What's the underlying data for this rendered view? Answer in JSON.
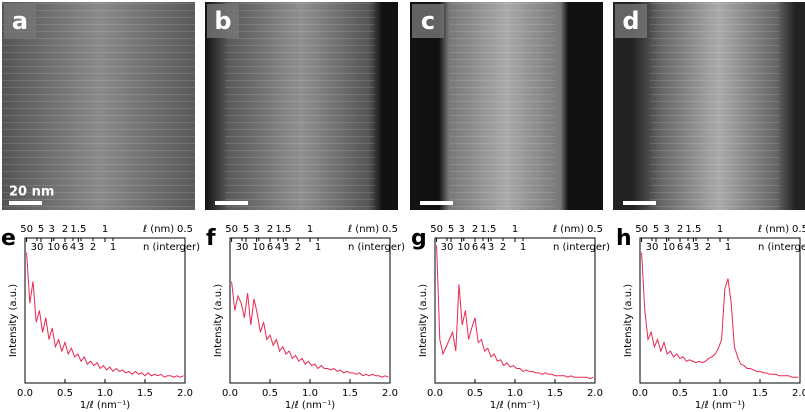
{
  "images": {
    "panels": [
      "a",
      "b",
      "c",
      "d"
    ],
    "scale_bar": "20 nm"
  },
  "chart_data": [
    {
      "type": "line",
      "panel": "e",
      "ylabel": "Intensity (a.u.)",
      "xlabel": "1/ℓ (nm⁻¹)",
      "x2label": "ℓ (nm)",
      "x3label": "n (interger)",
      "color": "#e8294f",
      "xlim": [
        0,
        2
      ],
      "ylim": [
        0,
        1
      ],
      "xticks": [
        {
          "value": 0,
          "label": "0.0"
        },
        0.5,
        {
          "value": 1,
          "label": "1.0"
        },
        1.5,
        {
          "value": 2,
          "label": "2.0"
        }
      ],
      "x2ticks": [
        {
          "value": 0.02,
          "label": "50"
        },
        {
          "value": 0.2,
          "label": "5"
        },
        {
          "value": 0.333,
          "label": "3"
        },
        {
          "value": 0.5,
          "label": "2"
        },
        {
          "value": 0.667,
          "label": "1.5"
        },
        {
          "value": 1,
          "label": "1"
        },
        {
          "value": 2,
          "label": "0.5"
        }
      ],
      "x3ticks": [
        {
          "value": 0.15,
          "label": "30"
        },
        {
          "value": 0.36,
          "label": "10"
        },
        {
          "value": 0.5,
          "label": "6"
        },
        {
          "value": 0.6,
          "label": "4"
        },
        {
          "value": 0.7,
          "label": "3"
        },
        {
          "value": 0.85,
          "label": "2"
        },
        {
          "value": 1.1,
          "label": "1"
        }
      ],
      "x": [
        0.02,
        0.06,
        0.1,
        0.14,
        0.18,
        0.22,
        0.26,
        0.3,
        0.34,
        0.38,
        0.42,
        0.46,
        0.5,
        0.54,
        0.58,
        0.62,
        0.66,
        0.7,
        0.74,
        0.78,
        0.82,
        0.86,
        0.9,
        0.94,
        0.98,
        1.02,
        1.06,
        1.1,
        1.14,
        1.18,
        1.22,
        1.26,
        1.3,
        1.34,
        1.38,
        1.42,
        1.46,
        1.5,
        1.54,
        1.58,
        1.62,
        1.66,
        1.7,
        1.74,
        1.78,
        1.82,
        1.86,
        1.9,
        1.94,
        1.98
      ],
      "values": [
        0.9,
        0.55,
        0.7,
        0.42,
        0.5,
        0.35,
        0.45,
        0.3,
        0.38,
        0.25,
        0.3,
        0.22,
        0.28,
        0.2,
        0.24,
        0.18,
        0.2,
        0.15,
        0.18,
        0.13,
        0.15,
        0.12,
        0.14,
        0.1,
        0.12,
        0.09,
        0.11,
        0.08,
        0.1,
        0.08,
        0.09,
        0.07,
        0.08,
        0.06,
        0.08,
        0.06,
        0.07,
        0.05,
        0.07,
        0.05,
        0.06,
        0.05,
        0.06,
        0.04,
        0.05,
        0.05,
        0.04,
        0.05,
        0.04,
        0.05
      ]
    },
    {
      "type": "line",
      "panel": "f",
      "ylabel": "Intensity (a.u.)",
      "xlabel": "1/ℓ (nm⁻¹)",
      "x2label": "ℓ (nm)",
      "x3label": "n (interger)",
      "color": "#e8294f",
      "xlim": [
        0,
        2
      ],
      "ylim": [
        0,
        1
      ],
      "xticks": [
        {
          "value": 0,
          "label": "0.0"
        },
        0.5,
        {
          "value": 1,
          "label": "1.0"
        },
        1.5,
        {
          "value": 2,
          "label": "2.0"
        }
      ],
      "x2ticks": [
        {
          "value": 0.02,
          "label": "50"
        },
        {
          "value": 0.2,
          "label": "5"
        },
        {
          "value": 0.333,
          "label": "3"
        },
        {
          "value": 0.5,
          "label": "2"
        },
        {
          "value": 0.667,
          "label": "1.5"
        },
        {
          "value": 1,
          "label": "1"
        },
        {
          "value": 2,
          "label": "0.5"
        }
      ],
      "x3ticks": [
        {
          "value": 0.15,
          "label": "30"
        },
        {
          "value": 0.36,
          "label": "10"
        },
        {
          "value": 0.5,
          "label": "6"
        },
        {
          "value": 0.6,
          "label": "4"
        },
        {
          "value": 0.7,
          "label": "3"
        },
        {
          "value": 0.85,
          "label": "2"
        },
        {
          "value": 1.1,
          "label": "1"
        }
      ],
      "x": [
        0.02,
        0.06,
        0.1,
        0.14,
        0.18,
        0.22,
        0.26,
        0.3,
        0.34,
        0.38,
        0.42,
        0.46,
        0.5,
        0.54,
        0.58,
        0.62,
        0.66,
        0.7,
        0.74,
        0.78,
        0.82,
        0.86,
        0.9,
        0.94,
        0.98,
        1.02,
        1.06,
        1.1,
        1.14,
        1.18,
        1.22,
        1.26,
        1.3,
        1.34,
        1.38,
        1.42,
        1.46,
        1.5,
        1.54,
        1.58,
        1.62,
        1.66,
        1.7,
        1.74,
        1.78,
        1.82,
        1.86,
        1.9,
        1.94,
        1.98
      ],
      "values": [
        0.7,
        0.5,
        0.6,
        0.55,
        0.45,
        0.62,
        0.4,
        0.58,
        0.48,
        0.35,
        0.42,
        0.3,
        0.33,
        0.26,
        0.3,
        0.22,
        0.25,
        0.2,
        0.22,
        0.17,
        0.19,
        0.15,
        0.17,
        0.13,
        0.15,
        0.12,
        0.13,
        0.1,
        0.12,
        0.1,
        0.1,
        0.09,
        0.1,
        0.08,
        0.09,
        0.07,
        0.08,
        0.07,
        0.07,
        0.06,
        0.07,
        0.05,
        0.06,
        0.05,
        0.06,
        0.05,
        0.05,
        0.04,
        0.05,
        0.04
      ]
    },
    {
      "type": "line",
      "panel": "g",
      "ylabel": "Intensity (a.u.)",
      "xlabel": "1/ℓ (nm⁻¹)",
      "x2label": "ℓ (nm)",
      "x3label": "n (interger)",
      "color": "#e8294f",
      "xlim": [
        0,
        2
      ],
      "ylim": [
        0,
        1
      ],
      "xticks": [
        {
          "value": 0,
          "label": "0.0"
        },
        0.5,
        {
          "value": 1,
          "label": "1.0"
        },
        1.5,
        {
          "value": 2,
          "label": "2.0"
        }
      ],
      "x2ticks": [
        {
          "value": 0.02,
          "label": "50"
        },
        {
          "value": 0.2,
          "label": "5"
        },
        {
          "value": 0.333,
          "label": "3"
        },
        {
          "value": 0.5,
          "label": "2"
        },
        {
          "value": 0.667,
          "label": "1.5"
        },
        {
          "value": 1,
          "label": "1"
        },
        {
          "value": 2,
          "label": "0.5"
        }
      ],
      "x3ticks": [
        {
          "value": 0.15,
          "label": "30"
        },
        {
          "value": 0.36,
          "label": "10"
        },
        {
          "value": 0.5,
          "label": "6"
        },
        {
          "value": 0.6,
          "label": "4"
        },
        {
          "value": 0.7,
          "label": "3"
        },
        {
          "value": 0.85,
          "label": "2"
        },
        {
          "value": 1.1,
          "label": "1"
        }
      ],
      "x": [
        0.02,
        0.06,
        0.1,
        0.14,
        0.18,
        0.22,
        0.26,
        0.3,
        0.34,
        0.38,
        0.42,
        0.46,
        0.5,
        0.54,
        0.58,
        0.62,
        0.66,
        0.7,
        0.74,
        0.78,
        0.82,
        0.86,
        0.9,
        0.94,
        0.98,
        1.02,
        1.06,
        1.1,
        1.14,
        1.18,
        1.22,
        1.26,
        1.3,
        1.34,
        1.38,
        1.42,
        1.46,
        1.5,
        1.54,
        1.58,
        1.62,
        1.66,
        1.7,
        1.74,
        1.78,
        1.82,
        1.86,
        1.9,
        1.94,
        1.98
      ],
      "values": [
        0.95,
        0.3,
        0.2,
        0.25,
        0.3,
        0.35,
        0.22,
        0.68,
        0.4,
        0.5,
        0.3,
        0.38,
        0.45,
        0.28,
        0.3,
        0.22,
        0.24,
        0.18,
        0.2,
        0.15,
        0.16,
        0.12,
        0.14,
        0.11,
        0.12,
        0.1,
        0.1,
        0.08,
        0.09,
        0.08,
        0.08,
        0.07,
        0.07,
        0.06,
        0.07,
        0.06,
        0.06,
        0.05,
        0.05,
        0.05,
        0.05,
        0.04,
        0.05,
        0.04,
        0.04,
        0.04,
        0.04,
        0.04,
        0.03,
        0.04
      ]
    },
    {
      "type": "line",
      "panel": "h",
      "ylabel": "Intensity (a.u.)",
      "xlabel": "1/ℓ (nm⁻¹)",
      "x2label": "ℓ (nm)",
      "x3label": "n (interger)",
      "color": "#e8294f",
      "xlim": [
        0,
        2
      ],
      "ylim": [
        0,
        1
      ],
      "xticks": [
        {
          "value": 0,
          "label": "0.0"
        },
        0.5,
        {
          "value": 1,
          "label": "1.0"
        },
        1.5,
        {
          "value": 2,
          "label": "2.0"
        }
      ],
      "x2ticks": [
        {
          "value": 0.02,
          "label": "50"
        },
        {
          "value": 0.2,
          "label": "5"
        },
        {
          "value": 0.333,
          "label": "3"
        },
        {
          "value": 0.5,
          "label": "2"
        },
        {
          "value": 0.667,
          "label": "1.5"
        },
        {
          "value": 1,
          "label": "1"
        },
        {
          "value": 2,
          "label": "0.5"
        }
      ],
      "x3ticks": [
        {
          "value": 0.15,
          "label": "30"
        },
        {
          "value": 0.36,
          "label": "10"
        },
        {
          "value": 0.5,
          "label": "6"
        },
        {
          "value": 0.6,
          "label": "4"
        },
        {
          "value": 0.7,
          "label": "3"
        },
        {
          "value": 0.85,
          "label": "2"
        },
        {
          "value": 1.1,
          "label": "1"
        }
      ],
      "x": [
        0.02,
        0.06,
        0.1,
        0.14,
        0.18,
        0.22,
        0.26,
        0.3,
        0.34,
        0.38,
        0.42,
        0.46,
        0.5,
        0.54,
        0.58,
        0.62,
        0.66,
        0.7,
        0.74,
        0.78,
        0.82,
        0.86,
        0.9,
        0.94,
        0.98,
        1.02,
        1.06,
        1.1,
        1.14,
        1.18,
        1.22,
        1.26,
        1.3,
        1.34,
        1.38,
        1.42,
        1.46,
        1.5,
        1.54,
        1.58,
        1.62,
        1.66,
        1.7,
        1.74,
        1.78,
        1.82,
        1.86,
        1.9,
        1.94,
        1.98
      ],
      "values": [
        0.9,
        0.5,
        0.3,
        0.35,
        0.25,
        0.3,
        0.22,
        0.28,
        0.2,
        0.22,
        0.18,
        0.2,
        0.17,
        0.18,
        0.15,
        0.16,
        0.15,
        0.14,
        0.15,
        0.14,
        0.15,
        0.17,
        0.18,
        0.2,
        0.24,
        0.3,
        0.65,
        0.72,
        0.55,
        0.25,
        0.18,
        0.13,
        0.12,
        0.1,
        0.1,
        0.09,
        0.08,
        0.08,
        0.07,
        0.07,
        0.06,
        0.06,
        0.06,
        0.05,
        0.05,
        0.05,
        0.05,
        0.04,
        0.04,
        0.04
      ]
    }
  ]
}
